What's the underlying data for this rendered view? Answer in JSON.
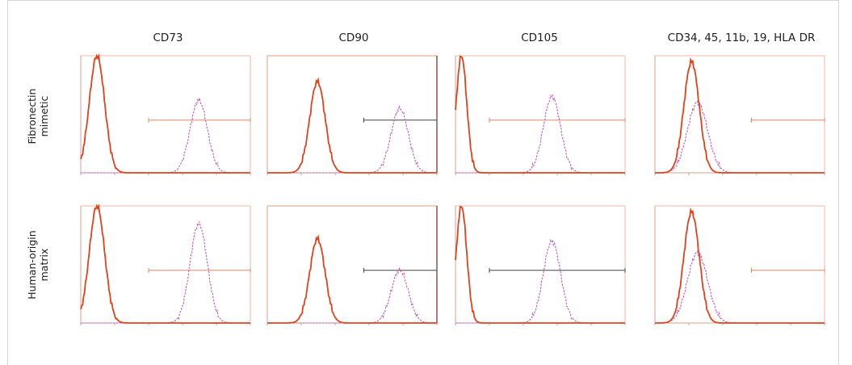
{
  "columns": [
    "CD73",
    "CD90",
    "CD105",
    "CD34, 45, 11b, 19, HLA DR"
  ],
  "rows": [
    [
      "Fibronectin",
      "mimetic"
    ],
    [
      "Human-origin",
      "matrix"
    ]
  ],
  "colors": {
    "control": "#e0421b",
    "marker": "#c65bb8",
    "gate": "#e08868",
    "gate_dark": "#444444",
    "frame_light": "#f0b9a8",
    "frame_dark": "#6a2a18"
  },
  "chart_data": [
    {
      "type": "histogram",
      "title": "CD73",
      "row": "Fibronectin mimetic",
      "x_scale": "log",
      "xlim": [
        1,
        100000
      ],
      "series": [
        {
          "name": "",
          "peak_x": 3,
          "peak_height": 1.0
        },
        {
          "name": "",
          "peak_x": 3000,
          "peak_height": 0.62
        }
      ],
      "gate": [
        100,
        100000
      ],
      "gate_style": "light",
      "frame": "light"
    },
    {
      "type": "histogram",
      "title": "CD90",
      "row": "Fibronectin mimetic",
      "x_scale": "log",
      "xlim": [
        1,
        100000
      ],
      "series": [
        {
          "name": "",
          "peak_x": 30,
          "peak_height": 0.78
        },
        {
          "name": "",
          "peak_x": 8000,
          "peak_height": 0.55
        }
      ],
      "gate": [
        700,
        100000
      ],
      "gate_style": "dark",
      "frame": "dark"
    },
    {
      "type": "histogram",
      "title": "CD105",
      "row": "Fibronectin mimetic",
      "x_scale": "log",
      "xlim": [
        1,
        100000
      ],
      "series": [
        {
          "name": "",
          "peak_x": 1.5,
          "peak_height": 1.0
        },
        {
          "name": "",
          "peak_x": 700,
          "peak_height": 0.65
        }
      ],
      "gate": [
        10,
        100000
      ],
      "gate_style": "light",
      "frame": "light"
    },
    {
      "type": "histogram",
      "title": "CD34, 45, 11b, 19, HLA DR",
      "row": "Fibronectin mimetic",
      "x_scale": "log",
      "xlim": [
        1,
        100000
      ],
      "series": [
        {
          "name": "",
          "peak_x": 12,
          "peak_height": 0.95
        },
        {
          "name": "",
          "peak_x": 18,
          "peak_height": 0.6
        }
      ],
      "gate": [
        700,
        100000
      ],
      "gate_style": "light",
      "frame": "light"
    },
    {
      "type": "histogram",
      "title": "CD73",
      "row": "Human-origin matrix",
      "x_scale": "log",
      "xlim": [
        1,
        100000
      ],
      "series": [
        {
          "name": "",
          "peak_x": 3,
          "peak_height": 1.0
        },
        {
          "name": "",
          "peak_x": 3000,
          "peak_height": 0.85
        }
      ],
      "gate": [
        100,
        100000
      ],
      "gate_style": "light",
      "frame": "light"
    },
    {
      "type": "histogram",
      "title": "CD90",
      "row": "Human-origin matrix",
      "x_scale": "log",
      "xlim": [
        1,
        100000
      ],
      "series": [
        {
          "name": "",
          "peak_x": 30,
          "peak_height": 0.72
        },
        {
          "name": "",
          "peak_x": 8000,
          "peak_height": 0.45
        }
      ],
      "gate": [
        700,
        100000
      ],
      "gate_style": "dark",
      "frame": "dark"
    },
    {
      "type": "histogram",
      "title": "CD105",
      "row": "Human-origin matrix",
      "x_scale": "log",
      "xlim": [
        1,
        100000
      ],
      "series": [
        {
          "name": "",
          "peak_x": 1.5,
          "peak_height": 1.0
        },
        {
          "name": "",
          "peak_x": 700,
          "peak_height": 0.7
        }
      ],
      "gate": [
        10,
        100000
      ],
      "gate_style": "dark",
      "frame": "light"
    },
    {
      "type": "histogram",
      "title": "CD34, 45, 11b, 19, HLA DR",
      "row": "Human-origin matrix",
      "x_scale": "log",
      "xlim": [
        1,
        100000
      ],
      "series": [
        {
          "name": "",
          "peak_x": 12,
          "peak_height": 0.95
        },
        {
          "name": "",
          "peak_x": 18,
          "peak_height": 0.6
        }
      ],
      "gate": [
        700,
        100000
      ],
      "gate_style": "light",
      "frame": "light"
    }
  ]
}
